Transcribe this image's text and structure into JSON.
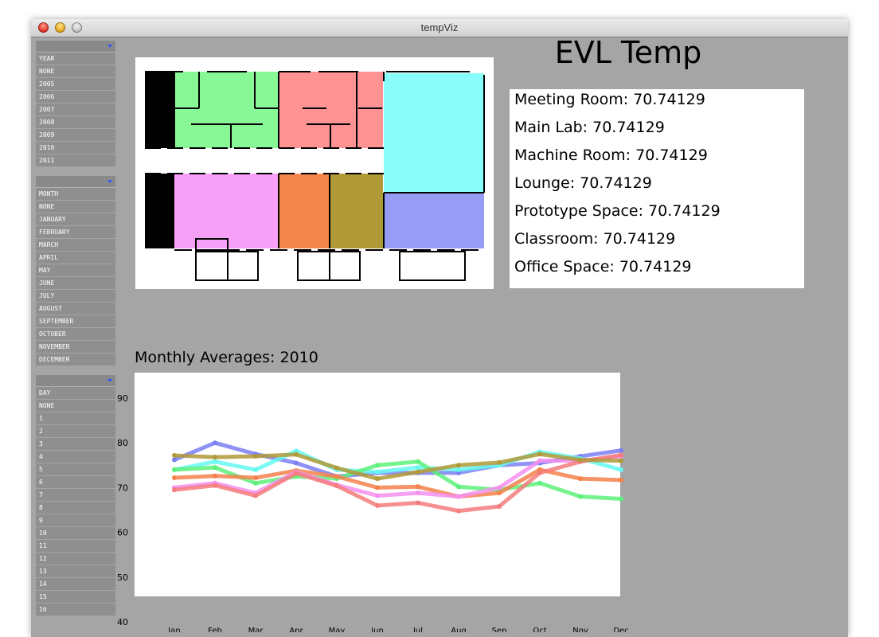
{
  "window": {
    "title": "tempViz"
  },
  "app_title": "EVL Temp",
  "menus": {
    "year": {
      "items": [
        "YEAR",
        "NONE",
        "2005",
        "2006",
        "2007",
        "2008",
        "2009",
        "2010",
        "2011"
      ]
    },
    "month": {
      "items": [
        "MONTH",
        "NONE",
        "JANUARY",
        "FEBRUARY",
        "MARCH",
        "APRIL",
        "MAY",
        "JUNE",
        "JULY",
        "AUGUST",
        "SEPTEMBER",
        "OCTOBER",
        "NOVEMBER",
        "DECEMBER"
      ]
    },
    "day": {
      "items": [
        "DAY",
        "NONE",
        "1",
        "2",
        "3",
        "4",
        "5",
        "6",
        "7",
        "8",
        "9",
        "10",
        "11",
        "12",
        "13",
        "14",
        "15",
        "16"
      ]
    }
  },
  "rooms": [
    {
      "label": "Meeting Room: 70.74129",
      "color": "#88f796"
    },
    {
      "label": "Main Lab: 70.74129",
      "color": "#ff9393"
    },
    {
      "label": "Machine Room: 70.74129",
      "color": "#88fdfa"
    },
    {
      "label": "Lounge: 70.74129",
      "color": "#f7a0f7"
    },
    {
      "label": "Prototype Space: 70.74129",
      "color": "#f4864c"
    },
    {
      "label": "Classroom: 70.74129",
      "color": "#b09a38"
    },
    {
      "label": "Office Space: 70.74129",
      "color": "#979cf5"
    }
  ],
  "chart_title": "Monthly Averages: 2010",
  "chart_data": {
    "type": "line",
    "categories": [
      "Jan",
      "Feb",
      "Mar",
      "Apr",
      "May",
      "Jun",
      "Jul",
      "Aug",
      "Sep",
      "Oct",
      "Nov",
      "Dec"
    ],
    "yticks": [
      90,
      80,
      70,
      60,
      50,
      40
    ],
    "ylim": [
      40,
      90
    ],
    "series": [
      {
        "color": "#7b7ff2",
        "values": [
          76.2,
          80.0,
          77.5,
          75.5,
          72.5,
          73.3,
          73.3,
          73.3,
          75.0,
          75.5,
          77.0,
          78.3
        ]
      },
      {
        "color": "#66f8f2",
        "values": [
          74.0,
          75.8,
          74.0,
          78.2,
          74.0,
          73.5,
          74.5,
          74.0,
          75.0,
          78.0,
          76.5,
          74.0
        ]
      },
      {
        "color": "#5ef07a",
        "values": [
          74.0,
          74.5,
          71.0,
          72.5,
          72.0,
          75.0,
          75.8,
          70.2,
          69.5,
          71.0,
          68.0,
          67.5
        ]
      },
      {
        "color": "#f5814c",
        "values": [
          72.2,
          72.6,
          72.2,
          73.8,
          72.5,
          70.0,
          70.2,
          68.0,
          68.8,
          74.0,
          72.0,
          71.7
        ]
      },
      {
        "color": "#f58fef",
        "values": [
          70.0,
          71.0,
          68.8,
          73.5,
          70.6,
          68.2,
          68.8,
          68.0,
          70.0,
          76.0,
          76.0,
          77.0
        ]
      },
      {
        "color": "#f57c7c",
        "values": [
          69.5,
          70.5,
          68.2,
          73.2,
          70.4,
          66.0,
          66.6,
          64.8,
          65.8,
          73.3,
          75.8,
          77.3
        ]
      },
      {
        "color": "#b09a38",
        "values": [
          77.2,
          76.8,
          77.0,
          77.4,
          74.4,
          72.0,
          73.5,
          75.0,
          75.6,
          77.5,
          76.2,
          76.0
        ]
      }
    ]
  }
}
